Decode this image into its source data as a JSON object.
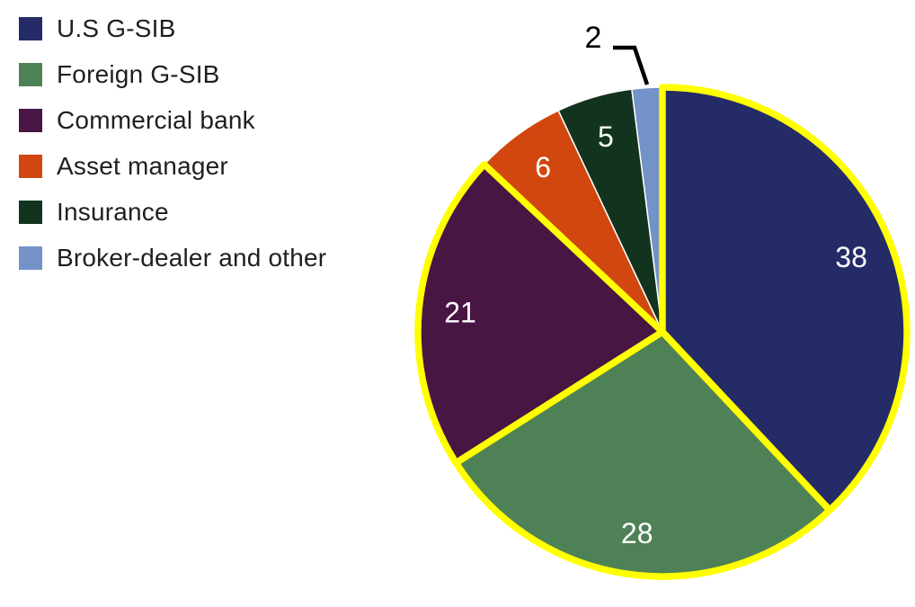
{
  "chart_data": {
    "type": "pie",
    "title": "",
    "legend_position": "left",
    "start_angle_deg": 0,
    "direction": "clockwise",
    "total": 100,
    "slices": [
      {
        "label": "U.S G-SIB",
        "value": 38,
        "color": "#242b66",
        "border_color": "#ffff00",
        "label_inside": true,
        "callout": false
      },
      {
        "label": "Foreign G-SIB",
        "value": 28,
        "color": "#4f8156",
        "border_color": "#ffff00",
        "label_inside": true,
        "callout": false
      },
      {
        "label": "Commercial bank",
        "value": 21,
        "color": "#491543",
        "border_color": "#ffff00",
        "label_inside": true,
        "callout": false
      },
      {
        "label": "Asset manager",
        "value": 6,
        "color": "#d1470f",
        "border_color": null,
        "label_inside": true,
        "callout": false
      },
      {
        "label": "Insurance",
        "value": 5,
        "color": "#12341e",
        "border_color": null,
        "label_inside": true,
        "callout": false
      },
      {
        "label": "Broker-dealer and other",
        "value": 2,
        "color": "#7392c8",
        "border_color": null,
        "label_inside": false,
        "callout": true
      }
    ],
    "data_label_color_inside": "#ffffff",
    "data_label_color_outside": "#000000",
    "callout_line_color": "#000000",
    "slice_border_highlight": "#ffff00",
    "slice_border_plain": "#ffffff"
  },
  "legend": {
    "text_color": "#1f1f1f"
  }
}
